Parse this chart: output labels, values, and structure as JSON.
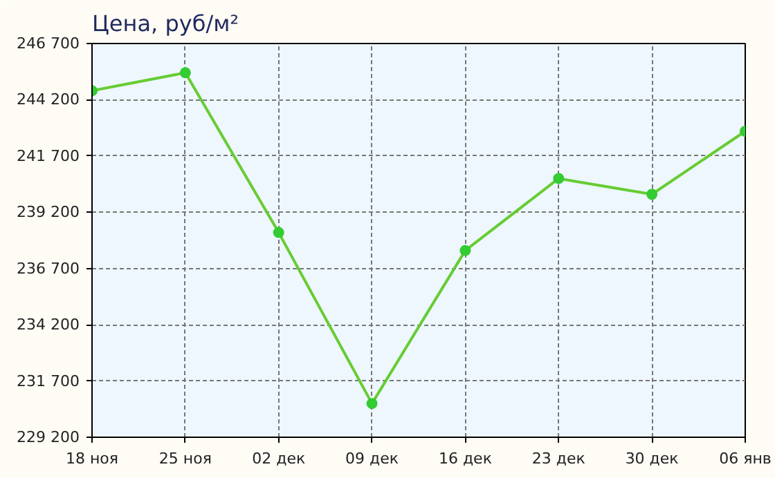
{
  "chart_data": {
    "type": "line",
    "title": "Цена, руб/м²",
    "categories": [
      "18 ноя",
      "25 ноя",
      "02 дек",
      "09 дек",
      "16 дек",
      "23 дек",
      "30 дек",
      "06 янв"
    ],
    "series": [
      {
        "color": "#66cc33",
        "values": [
          244600,
          245400,
          238300,
          230700,
          237500,
          240700,
          240000,
          242800
        ]
      }
    ],
    "ylim": [
      229200,
      246700
    ],
    "yticks": [
      {
        "value": 229200,
        "label": "229 200"
      },
      {
        "value": 231700,
        "label": "231 700"
      },
      {
        "value": 234200,
        "label": "234 200"
      },
      {
        "value": 236700,
        "label": "236 700"
      },
      {
        "value": 239200,
        "label": "239 200"
      },
      {
        "value": 241700,
        "label": "241 700"
      },
      {
        "value": 244200,
        "label": "244 200"
      },
      {
        "value": 246700,
        "label": "246 700"
      }
    ],
    "grid": true,
    "marker": "circle",
    "line_style": "solid"
  }
}
